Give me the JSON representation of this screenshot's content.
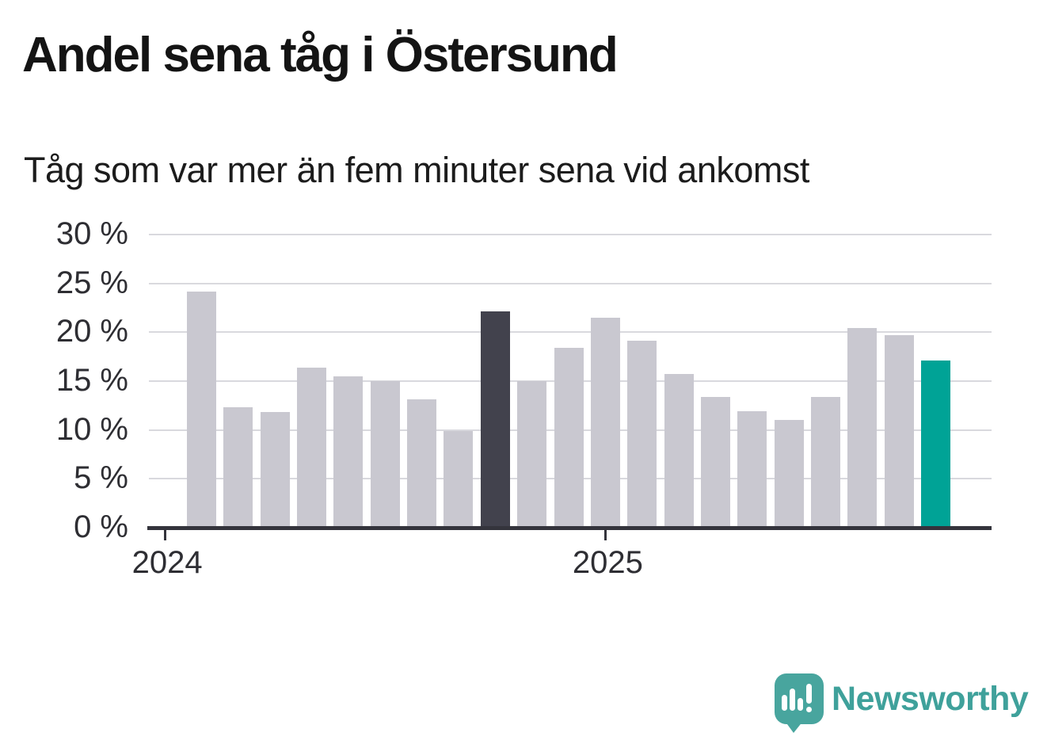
{
  "header": {
    "title": "Andel sena tåg i Östersund",
    "subtitle": "Tåg som var mer än fem minuter sena vid ankomst"
  },
  "chart_data": {
    "type": "bar",
    "title": "Andel sena tåg i Östersund",
    "subtitle": "Tåg som var mer än fem minuter sena vid ankomst",
    "unit": "%",
    "x": [
      "2024-02",
      "2024-03",
      "2024-04",
      "2024-05",
      "2024-06",
      "2024-07",
      "2024-08",
      "2024-09",
      "2024-10",
      "2024-11",
      "2024-12",
      "2025-01",
      "2025-02",
      "2025-03",
      "2025-04",
      "2025-05",
      "2025-06",
      "2025-07",
      "2025-08",
      "2025-09",
      "2025-10"
    ],
    "values": [
      24.2,
      12.3,
      11.8,
      16.4,
      15.5,
      15.0,
      13.1,
      9.9,
      22.1,
      15.0,
      18.4,
      21.5,
      19.1,
      15.7,
      13.4,
      11.9,
      11.0,
      13.4,
      20.4,
      19.7,
      17.1
    ],
    "highlight_dark_index": 8,
    "highlight_teal_index": 20,
    "ylim": [
      0,
      30
    ],
    "grid": true,
    "legend": "none",
    "y_ticks": [
      {
        "value": 30,
        "label": "30 %"
      },
      {
        "value": 25,
        "label": "25 %"
      },
      {
        "value": 20,
        "label": "20 %"
      },
      {
        "value": 15,
        "label": "15 %"
      },
      {
        "value": 10,
        "label": "10 %"
      },
      {
        "value": 5,
        "label": "5 %"
      },
      {
        "value": 0,
        "label": "0 %"
      }
    ],
    "x_ticks": [
      {
        "label": "2024",
        "month_index": -1
      },
      {
        "label": "2025",
        "month_index": 11
      }
    ],
    "colors": {
      "bar": "#c9c8d0",
      "highlight_dark": "#42424d",
      "highlight_teal": "#00a396",
      "gridline": "#d9d9de",
      "axis": "#34343c",
      "tick_text": "#2e2e33"
    }
  },
  "branding": {
    "logo_text": "Newsworthy",
    "logo_color": "#3fa19b",
    "logo_icon": "bar-chart-speech-bubble-icon"
  }
}
